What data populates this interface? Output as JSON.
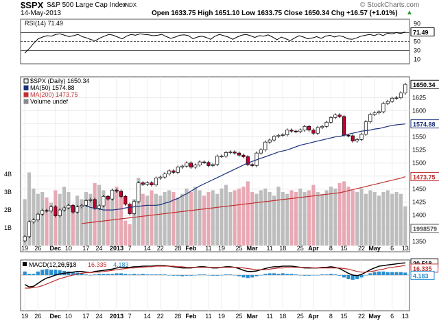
{
  "header": {
    "symbol": "$SPX",
    "name": "S&P 500 Large Cap Index",
    "exchange": "INDX",
    "date": "14-May-2013",
    "quote": "Open 1633.75  High 1651.10  Low 1633.75  Close 1650.34  Chg +16.57 (+1.01%)",
    "up_arrow": "▲",
    "watermark": "© StockCharts.com"
  },
  "chart_data": [
    {
      "type": "line",
      "panel": "rsi",
      "legend": "RSI(14) 71.49",
      "ylim": [
        0,
        100
      ],
      "ticks": [
        10,
        30,
        50,
        70,
        90
      ],
      "reference_lines": [
        70,
        50,
        30
      ],
      "current_value": 71.49,
      "current_label": "71.49",
      "colors": {
        "line": "#000000",
        "reference": "#555555"
      },
      "series": [
        {
          "values": [
            24,
            34,
            46,
            56,
            60,
            63,
            62,
            66,
            67,
            64,
            61,
            63,
            66,
            61,
            58,
            54,
            52,
            58,
            62,
            66,
            64,
            60,
            56,
            62,
            66,
            64,
            67,
            66,
            65,
            63,
            64,
            66,
            61,
            57,
            60,
            64,
            65,
            63,
            56,
            60,
            62,
            59,
            55,
            62,
            66,
            63,
            60,
            55,
            60,
            64,
            66,
            63,
            59,
            63,
            62,
            65,
            60,
            54,
            60,
            56,
            52,
            58,
            63,
            60,
            56,
            58,
            61,
            57,
            62,
            64,
            60,
            63,
            61,
            56,
            55,
            58,
            62,
            64,
            66,
            63,
            67,
            63,
            69,
            67,
            70,
            68,
            71.49
          ]
        }
      ]
    },
    {
      "type": "line",
      "panel": "price",
      "legend": [
        "$SPX (Daily) 1650.34",
        "MA(50) 1574.88",
        "MA(200) 1473.75",
        "Volume undef"
      ],
      "ylim": [
        1330,
        1665
      ],
      "ticks": [
        1350,
        1375,
        1400,
        1425,
        1450,
        1475,
        1500,
        1525,
        1550,
        1575,
        1600,
        1625
      ],
      "last_labels": [
        "1650.34",
        "1574.88",
        "1473.75",
        "1998579"
      ],
      "colors": {
        "up": "#ffffff",
        "down": "#c00030",
        "ma50": "#1a2f7a",
        "ma200": "#c03030",
        "volume": "#bdbdbd",
        "volume_down": "#e7a9b4"
      },
      "x_ticks": [
        "19",
        "26",
        "Dec",
        "10",
        "17",
        "24",
        "2013",
        "7",
        "14",
        "22",
        "28",
        "Feb",
        "11",
        "19",
        "25",
        "Mar",
        "11",
        "18",
        "25",
        "Apr",
        "8",
        "15",
        "22",
        "May",
        "6",
        "13"
      ],
      "bold_x_ticks": [
        "Dec",
        "2013",
        "Feb",
        "Mar",
        "Apr",
        "May"
      ],
      "series": [
        {
          "name": "$SPX (Daily)",
          "values": [
            1359,
            1387,
            1391,
            1402,
            1409,
            1408,
            1416,
            1399,
            1410,
            1414,
            1419,
            1406,
            1416,
            1419,
            1428,
            1430,
            1413,
            1418,
            1436,
            1431,
            1448,
            1446,
            1436,
            1421,
            1403,
            1426,
            1462,
            1459,
            1462,
            1458,
            1471,
            1473,
            1479,
            1485,
            1482,
            1492,
            1494,
            1500,
            1492,
            1496,
            1502,
            1501,
            1495,
            1497,
            1513,
            1513,
            1520,
            1521,
            1519,
            1515,
            1512,
            1497,
            1495,
            1519,
            1525,
            1540,
            1544,
            1551,
            1553,
            1554,
            1563,
            1561,
            1560,
            1563,
            1570,
            1563,
            1557,
            1568,
            1570,
            1578,
            1587,
            1592,
            1589,
            1553,
            1552,
            1542,
            1545,
            1555,
            1579,
            1593,
            1596,
            1598,
            1614,
            1618,
            1624,
            1625,
            1634,
            1650.34
          ]
        },
        {
          "name": "MA(50)",
          "values": [
            1418,
            1415,
            1413,
            1412,
            1410,
            1410,
            1410,
            1411,
            1412,
            1414,
            1415,
            1416,
            1417,
            1418,
            1419,
            1419,
            1419,
            1420,
            1423,
            1425,
            1429,
            1432,
            1437,
            1441,
            1446,
            1451,
            1456,
            1460,
            1464,
            1468,
            1472,
            1476,
            1480,
            1484,
            1488,
            1492,
            1496,
            1500,
            1503,
            1506,
            1509,
            1512,
            1515,
            1518,
            1521,
            1523,
            1525,
            1528,
            1531,
            1534,
            1536,
            1538,
            1540,
            1542,
            1544,
            1546,
            1548,
            1550,
            1551,
            1553,
            1555,
            1557,
            1559,
            1561,
            1562,
            1563,
            1565,
            1566,
            1568,
            1570,
            1572,
            1573,
            1574,
            1574.88
          ]
        },
        {
          "name": "MA(200)",
          "values": [
            1384,
            1385,
            1386,
            1387,
            1388,
            1389,
            1390,
            1391,
            1392,
            1393,
            1394,
            1395,
            1396,
            1397,
            1398,
            1399,
            1400,
            1401,
            1402,
            1403,
            1404,
            1405,
            1406,
            1407,
            1408,
            1409,
            1410,
            1411,
            1412,
            1413,
            1414,
            1415,
            1416,
            1417,
            1418,
            1419,
            1420,
            1421,
            1422,
            1423,
            1424,
            1425,
            1426,
            1427,
            1428,
            1429,
            1430,
            1431,
            1432,
            1433,
            1434,
            1435,
            1436,
            1437,
            1438,
            1439,
            1440,
            1441,
            1442,
            1443,
            1445,
            1447,
            1449,
            1451,
            1453,
            1455,
            1457,
            1459,
            1461,
            1463,
            1465,
            1467,
            1469,
            1471,
            1473.75
          ]
        }
      ],
      "volume": {
        "axis_labels": [
          "4B",
          "3B",
          "2B",
          "1B"
        ],
        "values": [
          2.6,
          4.1,
          3.2,
          2.9,
          3.0,
          2.7,
          2.4,
          3.1,
          2.9,
          3.3,
          3.0,
          2.2,
          2.8,
          2.6,
          3.0,
          2.9,
          3.5,
          3.4,
          3.1,
          2.7,
          2.6,
          3.3,
          3.0,
          1.4,
          1.2,
          2.6,
          3.8,
          2.9,
          2.8,
          3.1,
          2.9,
          2.8,
          3.0,
          3.1,
          3.0,
          2.7,
          2.9,
          3.2,
          3.0,
          3.3,
          3.1,
          2.8,
          3.0,
          3.1,
          2.9,
          3.2,
          3.4,
          3.0,
          3.1,
          3.2,
          3.3,
          3.6,
          3.0,
          2.9,
          3.1,
          3.2,
          3.0,
          2.8,
          3.3,
          3.0,
          2.9,
          3.1,
          3.0,
          3.2,
          3.0,
          3.1,
          3.4,
          3.0,
          2.9,
          3.1,
          3.3,
          3.2,
          3.5,
          3.6,
          3.3,
          3.1,
          3.0,
          3.2,
          2.9,
          3.1,
          3.0,
          2.8,
          3.0,
          3.1,
          2.9,
          3.0,
          2.9,
          2.2
        ]
      }
    },
    {
      "type": "line",
      "panel": "macd",
      "legend": [
        "MACD(12,26,9)",
        "20.518",
        "16.335",
        "4.183"
      ],
      "last_labels": [
        "20.518",
        "16.335",
        "4.183"
      ],
      "colors": {
        "macd": "#000000",
        "signal": "#c03030",
        "histogram": "#2a8fd0",
        "values": [
          "#000000",
          "#c03030",
          "#2a8fd0"
        ]
      },
      "x_ticks": [
        "19",
        "26",
        "Dec",
        "10",
        "17",
        "24",
        "2013",
        "7",
        "14",
        "22",
        "28",
        "Feb",
        "11",
        "19",
        "25",
        "Mar",
        "11",
        "18",
        "25",
        "Apr",
        "8",
        "15",
        "22",
        "May",
        "6",
        "13"
      ],
      "bold_x_ticks": [
        "Dec",
        "2013",
        "Feb",
        "Mar",
        "Apr",
        "May"
      ],
      "series": [
        {
          "name": "MACD",
          "values": [
            -16,
            -20,
            -19,
            -14,
            -9,
            -5,
            -3,
            0,
            2,
            3,
            4,
            5,
            6,
            6,
            5,
            4,
            6,
            7,
            8,
            9,
            10,
            12,
            13,
            13,
            13,
            14,
            14,
            15,
            15,
            15,
            16,
            16,
            16,
            15,
            14,
            13,
            12,
            12,
            12,
            13,
            14,
            14,
            13,
            12,
            12,
            13,
            14,
            14,
            13,
            11,
            8,
            6,
            6,
            7,
            9,
            11,
            13,
            14,
            14,
            15,
            15,
            15,
            14,
            13,
            12,
            12,
            12,
            12,
            13,
            13,
            14,
            13,
            11,
            7,
            3,
            0,
            -1,
            1,
            5,
            9,
            12,
            15,
            16,
            17,
            18,
            19,
            20,
            20.518
          ]
        },
        {
          "name": "Signal",
          "values": [
            -22,
            -22,
            -21,
            -20,
            -18,
            -15,
            -12,
            -9,
            -6,
            -4,
            -2,
            0,
            2,
            3,
            4,
            4,
            5,
            5,
            6,
            7,
            8,
            9,
            10,
            11,
            12,
            12,
            13,
            13,
            14,
            14,
            15,
            15,
            15,
            15,
            15,
            14,
            14,
            13,
            13,
            13,
            13,
            13,
            13,
            13,
            13,
            13,
            13,
            13,
            13,
            13,
            12,
            11,
            10,
            9,
            9,
            9,
            10,
            11,
            12,
            12,
            13,
            13,
            13,
            13,
            13,
            13,
            12,
            12,
            12,
            12,
            12,
            12,
            12,
            11,
            10,
            8,
            6,
            5,
            5,
            6,
            7,
            9,
            10,
            12,
            13,
            14,
            15,
            16.335
          ]
        },
        {
          "name": "Histogram",
          "values": [
            6,
            2,
            2,
            6,
            9,
            10,
            9,
            9,
            8,
            7,
            6,
            5,
            4,
            3,
            1,
            0,
            1,
            2,
            2,
            2,
            2,
            3,
            3,
            2,
            1,
            2,
            1,
            2,
            1,
            1,
            1,
            1,
            1,
            0,
            -1,
            -1,
            -2,
            -1,
            -1,
            0,
            1,
            1,
            0,
            -1,
            -1,
            0,
            1,
            1,
            0,
            -2,
            -4,
            -5,
            -4,
            -2,
            0,
            2,
            3,
            3,
            2,
            3,
            2,
            2,
            1,
            0,
            -1,
            -1,
            0,
            0,
            1,
            1,
            2,
            1,
            -1,
            -4,
            -7,
            -8,
            -7,
            -4,
            0,
            3,
            5,
            6,
            6,
            5,
            5,
            5,
            5,
            4.183
          ]
        }
      ]
    }
  ]
}
